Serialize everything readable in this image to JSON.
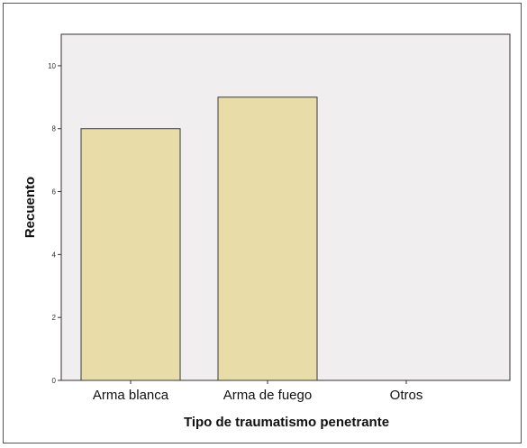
{
  "chart_data": {
    "type": "bar",
    "title": "",
    "xlabel": "Tipo de traumatismo penetrante",
    "ylabel": "Recuento",
    "categories": [
      "Arma blanca",
      "Arma de fuego",
      "Otros"
    ],
    "values": [
      8,
      9,
      0
    ],
    "ylim": [
      0,
      11
    ],
    "yticks": [
      0,
      2,
      4,
      6,
      8,
      10
    ],
    "grid": false,
    "legend": "none",
    "colors": {
      "plot_background": "#f0eeee",
      "bar_fill": "#e8dca8",
      "bar_stroke": "#3a3a3a",
      "axis": "#333333"
    }
  }
}
